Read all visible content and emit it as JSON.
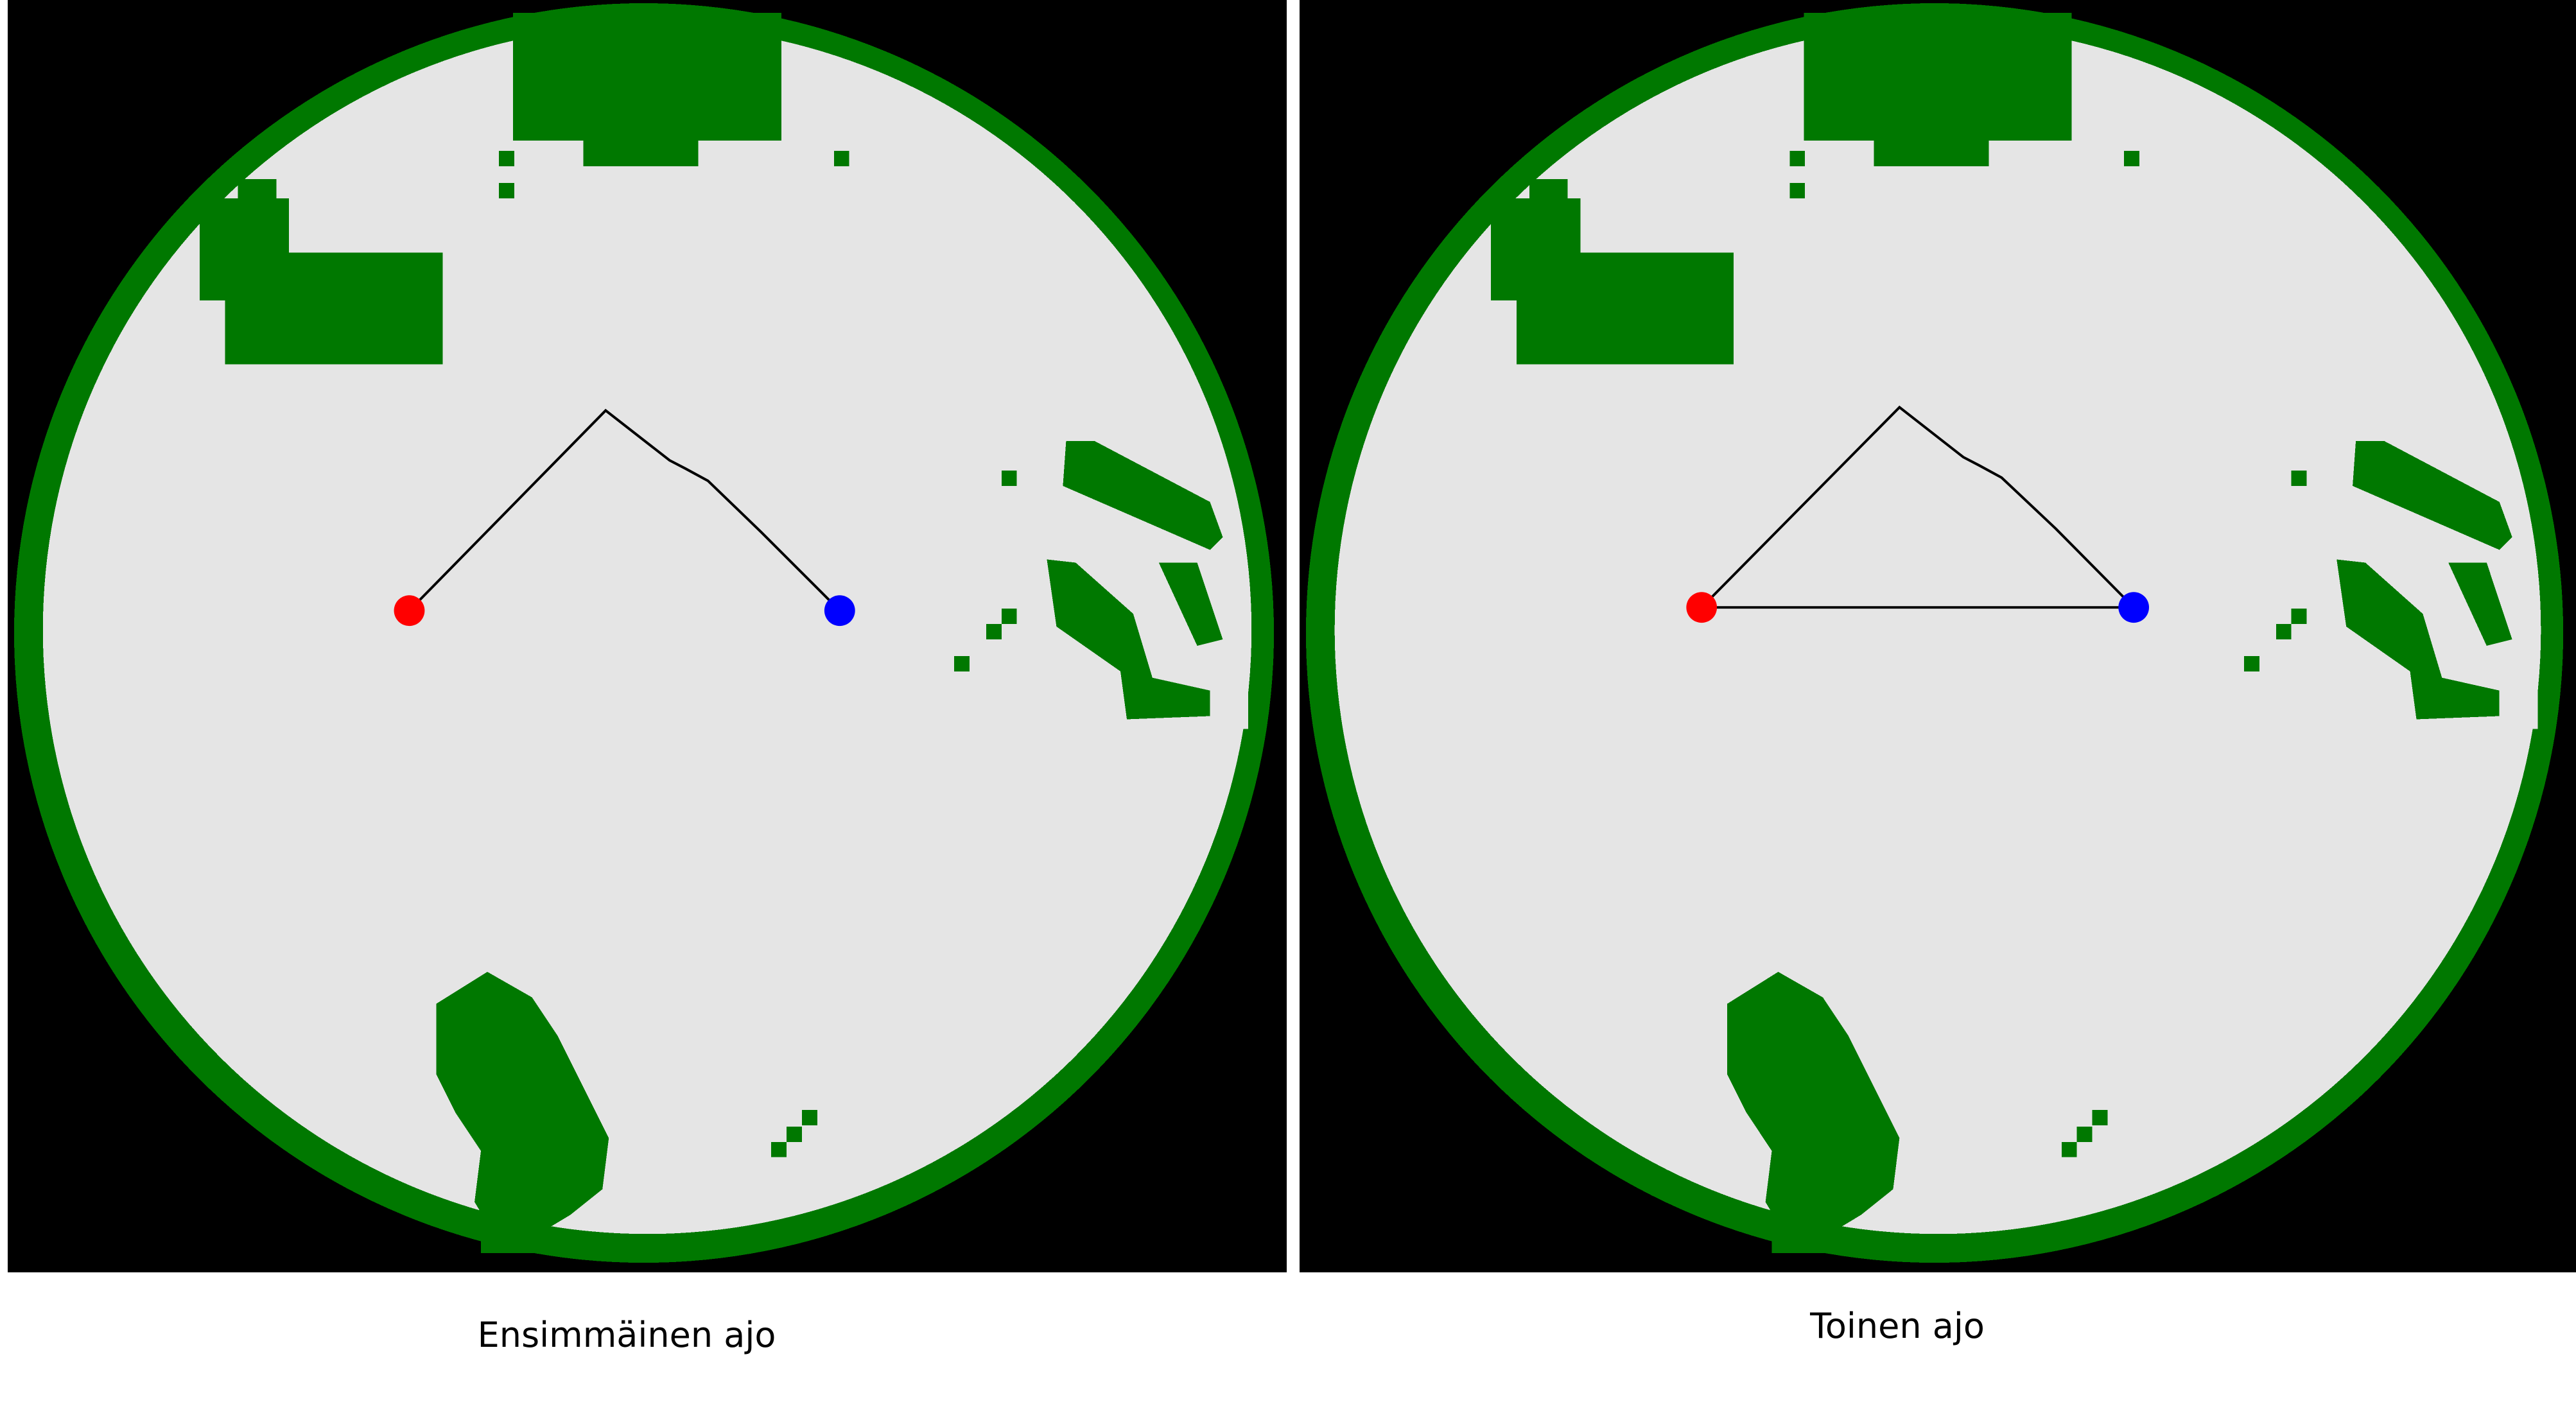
{
  "runs": [
    {
      "caption": "Ensimmäinen ajo",
      "return_segment_visible": false
    },
    {
      "caption": "Toinen ajo",
      "return_segment_visible": true
    }
  ],
  "colors": {
    "background": "#000000",
    "free_space": "#e5e5e5",
    "obstacle": "#007800",
    "path": "#000000",
    "start_marker": "#ff0000",
    "goal_marker": "#0000ff"
  },
  "legend": {
    "start_marker": "red-circle",
    "goal_marker": "blue-circle"
  }
}
